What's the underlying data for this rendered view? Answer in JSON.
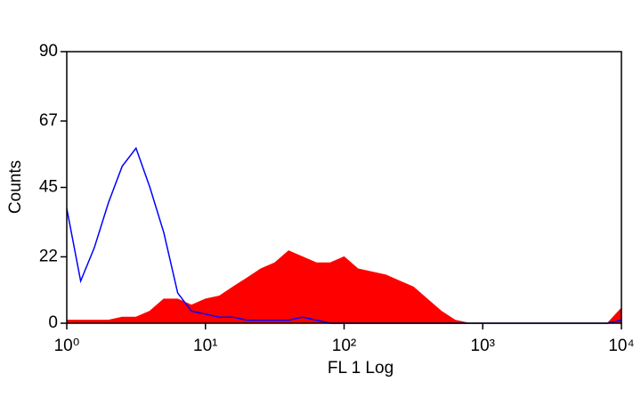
{
  "chart_data": {
    "type": "histogram",
    "xlabel": "FL 1 Log",
    "ylabel": "Counts",
    "xscale": "log",
    "xlim": [
      1,
      10000
    ],
    "xticks": [
      {
        "value": 1,
        "label": "10⁰"
      },
      {
        "value": 10,
        "label": "10¹"
      },
      {
        "value": 100,
        "label": "10²"
      },
      {
        "value": 1000,
        "label": "10³"
      },
      {
        "value": 10000,
        "label": "10⁴"
      }
    ],
    "ylim": [
      0,
      90
    ],
    "yticks": [
      0,
      22,
      45,
      67,
      90
    ],
    "x": [
      1,
      1.26,
      1.58,
      2,
      2.51,
      3.16,
      3.98,
      5.01,
      6.31,
      7.94,
      10,
      12.6,
      15.8,
      20,
      25.1,
      31.6,
      39.8,
      50.1,
      63.1,
      79.4,
      100,
      126,
      158,
      200,
      251,
      316,
      398,
      501,
      631,
      794,
      1000,
      1259,
      1585,
      1995,
      2512,
      3162,
      3981,
      5012,
      6310,
      7943,
      10000
    ],
    "series": [
      {
        "style": "fill",
        "color": "#ff0000",
        "values": [
          1,
          1,
          1,
          1,
          2,
          2,
          4,
          8,
          8,
          6,
          8,
          9,
          12,
          15,
          18,
          20,
          24,
          22,
          20,
          20,
          22,
          18,
          17,
          16,
          14,
          12,
          8,
          4,
          1,
          0,
          0,
          0,
          0,
          0,
          0,
          0,
          0,
          0,
          0,
          0,
          5
        ]
      },
      {
        "style": "line",
        "color": "#0000ff",
        "values": [
          38,
          14,
          25,
          40,
          52,
          58,
          45,
          30,
          10,
          4,
          3,
          2,
          2,
          1,
          1,
          1,
          1,
          2,
          1,
          0,
          0,
          0,
          0,
          0,
          0,
          0,
          0,
          0,
          0,
          0,
          0,
          0,
          0,
          0,
          0,
          0,
          0,
          0,
          0,
          0,
          1
        ]
      }
    ]
  }
}
